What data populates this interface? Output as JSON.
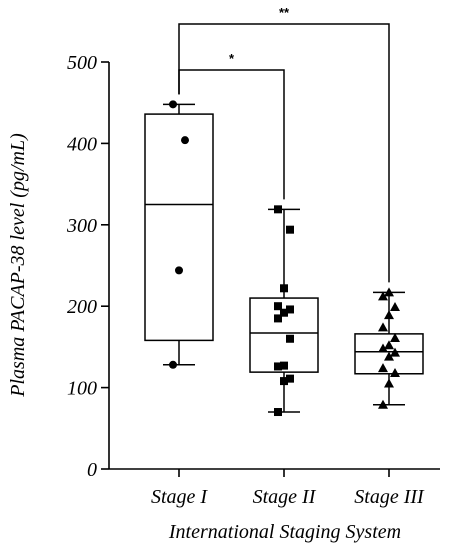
{
  "chart_data": {
    "type": "box",
    "ylabel": "Plasma PACAP-38 level (pg/mL)",
    "xlabel": "International Staging System",
    "ylim": [
      0,
      500
    ],
    "yticks": [
      0,
      100,
      200,
      300,
      400,
      500
    ],
    "grid": false,
    "groups": [
      {
        "name": "Stage I",
        "marker": "circle",
        "whisker_low": 128,
        "q1": 158,
        "median": 325,
        "q3": 436,
        "whisker_high": 448,
        "points": [
          128,
          244,
          404,
          448
        ]
      },
      {
        "name": "Stage II",
        "marker": "square",
        "whisker_low": 70,
        "q1": 119,
        "median": 167,
        "q3": 210,
        "whisker_high": 319,
        "points": [
          70,
          108,
          111,
          126,
          127,
          160,
          185,
          192,
          196,
          200,
          222,
          294,
          319
        ]
      },
      {
        "name": "Stage III",
        "marker": "triangle",
        "whisker_low": 79,
        "q1": 117,
        "median": 144,
        "q3": 166,
        "whisker_high": 217,
        "points": [
          79,
          105,
          118,
          124,
          138,
          143,
          148,
          152,
          161,
          174,
          189,
          199,
          212,
          217
        ]
      }
    ],
    "comparisons": [
      {
        "from": "Stage I",
        "to": "Stage II",
        "label": "*"
      },
      {
        "from": "Stage I",
        "to": "Stage III",
        "label": "**"
      }
    ]
  }
}
